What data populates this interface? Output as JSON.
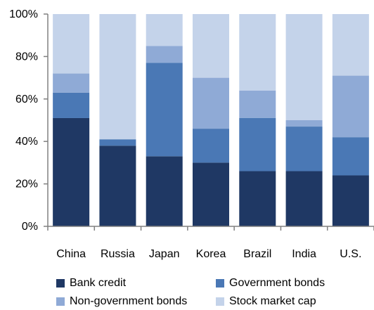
{
  "chart_data": {
    "type": "bar",
    "stacked": true,
    "normalized": true,
    "categories": [
      "China",
      "Russia",
      "Japan",
      "Korea",
      "Brazil",
      "India",
      "U.S."
    ],
    "series": [
      {
        "name": "Bank credit",
        "color": "#1f3864",
        "values": [
          51,
          38,
          33,
          30,
          26,
          26,
          24
        ]
      },
      {
        "name": "Government bonds",
        "color": "#4a78b5",
        "values": [
          12,
          3,
          44,
          16,
          25,
          21,
          18
        ]
      },
      {
        "name": "Non-government bonds",
        "color": "#8faad6",
        "values": [
          9,
          0,
          8,
          24,
          13,
          3,
          29
        ]
      },
      {
        "name": "Stock market cap",
        "color": "#c4d3ea",
        "values": [
          28,
          59,
          15,
          30,
          36,
          50,
          29
        ]
      }
    ],
    "ylim": [
      0,
      100
    ],
    "yticks": [
      "0%",
      "20%",
      "40%",
      "60%",
      "80%",
      "100%"
    ],
    "ytick_values": [
      0,
      20,
      40,
      60,
      80,
      100
    ],
    "grid": false,
    "legend_position": "bottom"
  }
}
